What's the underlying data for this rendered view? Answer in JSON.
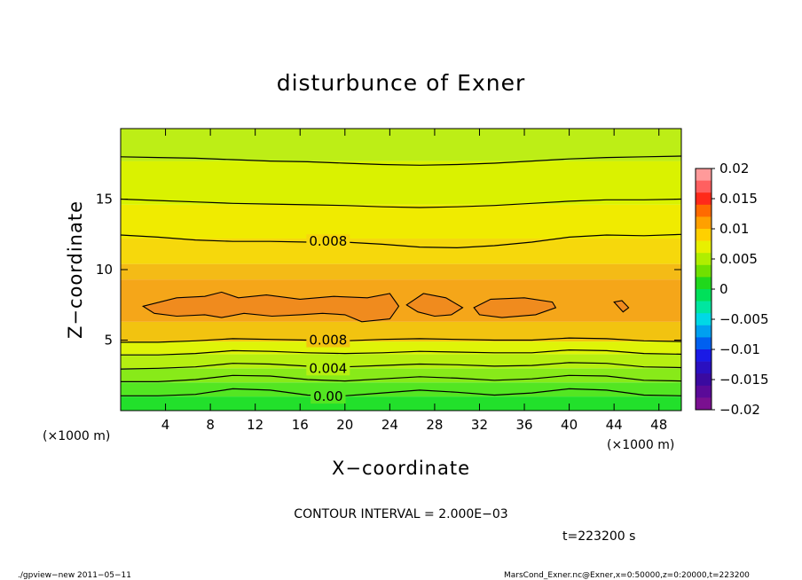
{
  "chart_data": {
    "type": "contour",
    "title": "disturbunce of Exner",
    "xlabel": "X−coordinate",
    "ylabel": "Z−coordinate",
    "x_unit": "(×1000 m)",
    "z_unit": "(×1000 m)",
    "xlim": [
      0,
      50
    ],
    "ylim": [
      0,
      20
    ],
    "x_ticks": [
      4,
      8,
      12,
      16,
      20,
      24,
      28,
      32,
      36,
      40,
      44,
      48
    ],
    "y_ticks": [
      5,
      10,
      15
    ],
    "contour_interval": 0.002,
    "contour_labels": [
      {
        "text": "0.008",
        "x": 18.5,
        "z": 12.0
      },
      {
        "text": "0.008",
        "x": 18.5,
        "z": 5.0
      },
      {
        "text": "0.004",
        "x": 18.5,
        "z": 3.0
      },
      {
        "text": "0.00",
        "x": 18.5,
        "z": 1.0
      }
    ],
    "levels": [
      {
        "value": 0.0,
        "z": [
          1.05,
          1.05,
          1.15,
          1.55,
          1.45,
          1.1,
          1.05,
          1.25,
          1.45,
          1.3,
          1.1,
          1.25,
          1.55,
          1.45,
          1.1,
          1.05
        ]
      },
      {
        "value": 0.002,
        "z": [
          2.05,
          2.05,
          2.2,
          2.5,
          2.45,
          2.2,
          2.1,
          2.25,
          2.4,
          2.3,
          2.15,
          2.25,
          2.5,
          2.45,
          2.15,
          2.1
        ]
      },
      {
        "value": 0.004,
        "z": [
          2.95,
          3.0,
          3.1,
          3.35,
          3.3,
          3.15,
          3.1,
          3.2,
          3.3,
          3.25,
          3.15,
          3.2,
          3.4,
          3.35,
          3.1,
          3.05
        ]
      },
      {
        "value": 0.006,
        "z": [
          3.95,
          3.95,
          4.05,
          4.25,
          4.2,
          4.1,
          4.05,
          4.1,
          4.2,
          4.15,
          4.1,
          4.1,
          4.3,
          4.25,
          4.05,
          4.0
        ]
      },
      {
        "value": 0.008,
        "z": [
          4.85,
          4.85,
          4.95,
          5.1,
          5.05,
          5.0,
          4.95,
          5.05,
          5.1,
          5.05,
          5.0,
          5.0,
          5.15,
          5.1,
          4.95,
          4.9
        ]
      },
      {
        "value": 0.008,
        "z": [
          12.45,
          12.3,
          12.1,
          12.0,
          12.0,
          11.95,
          11.95,
          11.8,
          11.6,
          11.55,
          11.7,
          11.95,
          12.3,
          12.45,
          12.4,
          12.5
        ]
      },
      {
        "value": 0.006,
        "z": [
          15.0,
          14.9,
          14.8,
          14.7,
          14.65,
          14.6,
          14.55,
          14.45,
          14.4,
          14.45,
          14.55,
          14.7,
          14.85,
          14.95,
          14.95,
          15.0
        ]
      },
      {
        "value": 0.004,
        "z": [
          18.0,
          17.95,
          17.9,
          17.8,
          17.7,
          17.65,
          17.55,
          17.45,
          17.4,
          17.45,
          17.55,
          17.7,
          17.85,
          17.95,
          18.0,
          18.05
        ]
      }
    ],
    "closed_contours": [
      {
        "value": 0.01,
        "x": [
          2.0,
          5.0,
          7.5,
          9.0,
          10.5,
          13.0,
          16.0,
          19.0,
          22.0,
          24.0,
          24.8,
          24.0,
          21.5,
          20.0,
          18.0,
          16.0,
          13.5,
          11.0,
          9.0,
          7.5,
          5.0,
          3.0,
          2.0
        ],
        "z": [
          7.4,
          8.0,
          8.1,
          8.4,
          8.0,
          8.2,
          7.9,
          8.1,
          8.0,
          8.3,
          7.4,
          6.5,
          6.3,
          6.8,
          6.9,
          6.8,
          6.7,
          6.9,
          6.6,
          6.8,
          6.7,
          6.9,
          7.4
        ]
      },
      {
        "value": 0.01,
        "x": [
          25.5,
          27.0,
          29.0,
          30.5,
          29.5,
          28.0,
          26.5,
          25.5
        ],
        "z": [
          7.5,
          8.3,
          8.0,
          7.3,
          6.8,
          6.7,
          7.0,
          7.5
        ]
      },
      {
        "value": 0.01,
        "x": [
          31.5,
          33.0,
          36.0,
          38.5,
          38.8,
          37.0,
          34.0,
          32.0,
          31.5
        ],
        "z": [
          7.3,
          7.9,
          8.0,
          7.7,
          7.3,
          6.8,
          6.6,
          6.8,
          7.3
        ]
      },
      {
        "value": 0.01,
        "x": [
          44.0,
          44.7,
          45.3,
          44.8,
          44.0
        ],
        "z": [
          7.7,
          7.8,
          7.3,
          7.0,
          7.7
        ]
      }
    ],
    "bands": [
      {
        "lo": [
          0,
          0.0
        ],
        "hi": [
          0,
          1.0
        ],
        "color": "#22e02b"
      },
      {
        "lo": [
          0,
          1.0
        ],
        "hi": [
          0,
          2.0
        ],
        "color": "#53e622"
      },
      {
        "lo": [
          0,
          2.0
        ],
        "hi": [
          0,
          3.0
        ],
        "color": "#88ea19"
      },
      {
        "lo": [
          0,
          3.0
        ],
        "hi": [
          0,
          4.0
        ],
        "color": "#b6ef11"
      },
      {
        "lo": [
          0,
          4.0
        ],
        "hi": [
          0,
          4.9
        ],
        "color": "#dff408"
      },
      {
        "lo": [
          0,
          4.9
        ],
        "hi": [
          0,
          6.3
        ],
        "color": "#f2c310"
      },
      {
        "lo": [
          0,
          6.3
        ],
        "hi": [
          0,
          9.3
        ],
        "color": "#f5a619"
      },
      {
        "lo": [
          0,
          9.3
        ],
        "hi": [
          0,
          10.4
        ],
        "color": "#f4bb16"
      },
      {
        "lo": [
          0,
          10.4
        ],
        "hi": [
          0,
          12.2
        ],
        "color": "#f6d80c"
      },
      {
        "lo": [
          0,
          12.2
        ],
        "hi": [
          0,
          14.6
        ],
        "color": "#f0eb00"
      },
      {
        "lo": [
          0,
          14.6
        ],
        "hi": [
          0,
          17.7
        ],
        "color": "#daf200"
      },
      {
        "lo": [
          0,
          17.7
        ],
        "hi": [
          0,
          20.0
        ],
        "color": "#bdee16"
      }
    ],
    "core_color": "#f08b1e",
    "colorbar": {
      "labels": [
        "0.02",
        "0.015",
        "0.01",
        "0.005",
        "0",
        "−0.005",
        "−0.01",
        "−0.015",
        "−0.02"
      ],
      "colors": [
        "#ff9a9a",
        "#ff6060",
        "#ff2a1a",
        "#ff6a00",
        "#ffa000",
        "#ffd000",
        "#e8f000",
        "#b0ee00",
        "#70e000",
        "#20d81c",
        "#00e05a",
        "#00e6a0",
        "#00d8e6",
        "#00a0f0",
        "#0060f0",
        "#1a1ae6",
        "#2a10c0",
        "#3a0aa0",
        "#5a0a98",
        "#7a1090"
      ]
    },
    "contour_interval_text": "CONTOUR INTERVAL = 2.000E−03",
    "time_text": "t=223200  s"
  },
  "footer": {
    "left": "./gpview−new   2011−05−11",
    "right": "MarsCond_Exner.nc@Exner,x=0:50000,z=0:20000,t=223200"
  }
}
